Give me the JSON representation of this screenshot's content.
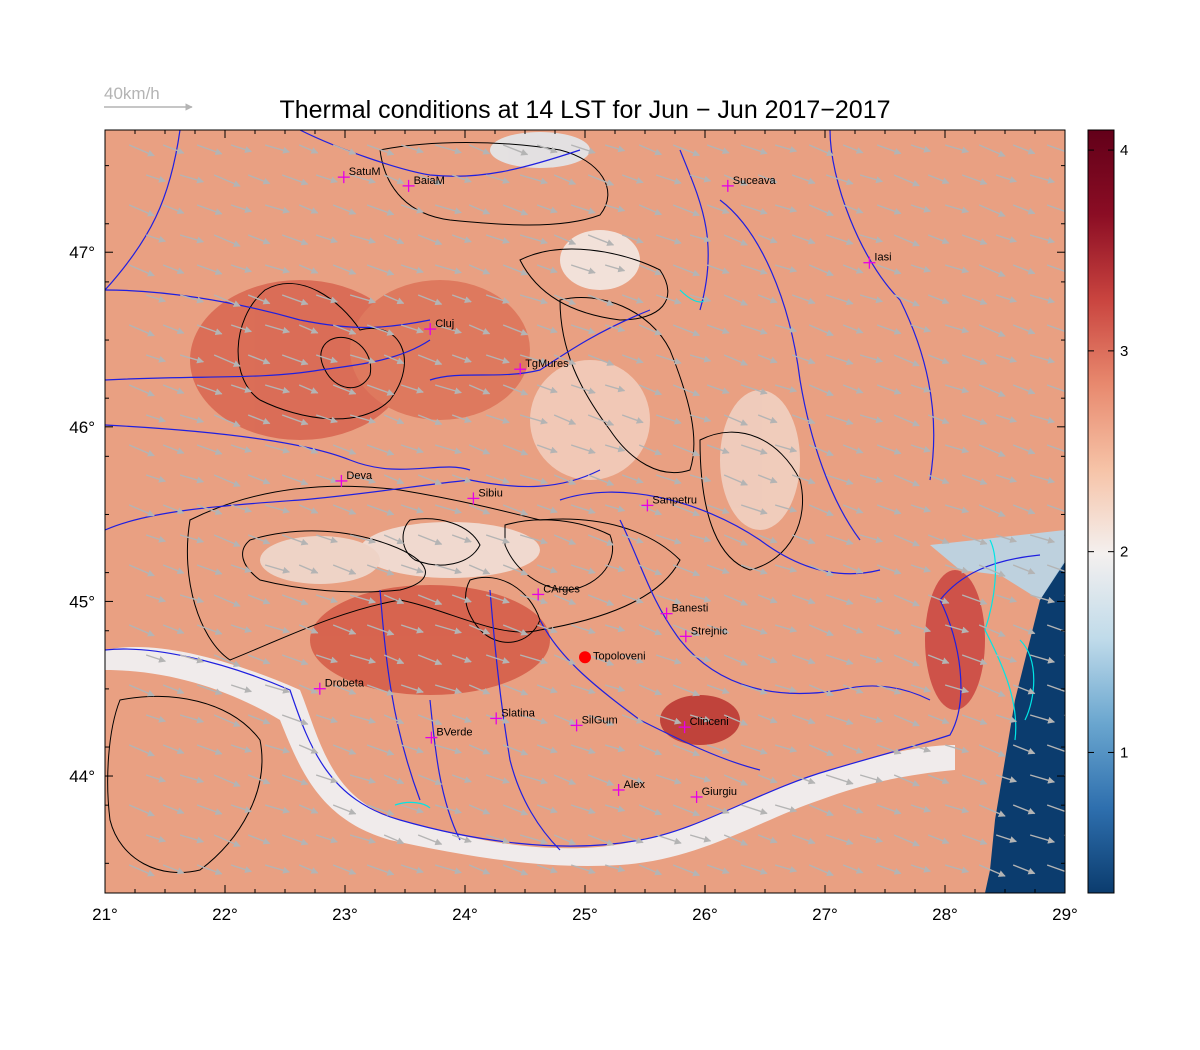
{
  "title": "Thermal conditions at 14 LST for Jun − Jun  2017−2017",
  "wind_scale": {
    "label": "40km/h",
    "color": "#b4b4b4"
  },
  "map": {
    "lon_range": [
      21,
      29
    ],
    "lat_range": [
      43.33,
      47.7
    ],
    "x_ticks": [
      {
        "value": 21,
        "label": "21°"
      },
      {
        "value": 22,
        "label": "22°"
      },
      {
        "value": 23,
        "label": "23°"
      },
      {
        "value": 24,
        "label": "24°"
      },
      {
        "value": 25,
        "label": "25°"
      },
      {
        "value": 26,
        "label": "26°"
      },
      {
        "value": 27,
        "label": "27°"
      },
      {
        "value": 28,
        "label": "28°"
      },
      {
        "value": 29,
        "label": "29°"
      }
    ],
    "y_ticks": [
      {
        "value": 44,
        "label": "44°"
      },
      {
        "value": 45,
        "label": "45°"
      },
      {
        "value": 46,
        "label": "46°"
      },
      {
        "value": 47,
        "label": "47°"
      }
    ]
  },
  "colorbar": {
    "range": [
      0.3,
      4.1
    ],
    "ticks": [
      {
        "value": 1,
        "label": "1"
      },
      {
        "value": 2,
        "label": "2"
      },
      {
        "value": 3,
        "label": "3"
      },
      {
        "value": 4,
        "label": "4"
      }
    ],
    "colors": [
      "#0b3c6e",
      "#2e6fae",
      "#6aa6cf",
      "#c0dbea",
      "#f4f0ef",
      "#f6c3a7",
      "#e8896e",
      "#c9443f",
      "#8b0d24",
      "#620019"
    ]
  },
  "cities": [
    {
      "name": "SatuM",
      "lon": 22.99,
      "lat": 47.43
    },
    {
      "name": "BaiaM",
      "lon": 23.53,
      "lat": 47.38
    },
    {
      "name": "Suceava",
      "lon": 26.19,
      "lat": 47.38
    },
    {
      "name": "Iasi",
      "lon": 27.37,
      "lat": 46.94
    },
    {
      "name": "Cluj",
      "lon": 23.71,
      "lat": 46.56
    },
    {
      "name": "TgMures",
      "lon": 24.46,
      "lat": 46.33
    },
    {
      "name": "Deva",
      "lon": 22.97,
      "lat": 45.69
    },
    {
      "name": "Sibiu",
      "lon": 24.07,
      "lat": 45.59
    },
    {
      "name": "Sanpetru",
      "lon": 25.52,
      "lat": 45.55
    },
    {
      "name": "CArges",
      "lon": 24.61,
      "lat": 45.04
    },
    {
      "name": "Banesti",
      "lon": 25.68,
      "lat": 44.93
    },
    {
      "name": "Strejnic",
      "lon": 25.84,
      "lat": 44.8
    },
    {
      "name": "Drobeta",
      "lon": 22.79,
      "lat": 44.5
    },
    {
      "name": "Slatina",
      "lon": 24.26,
      "lat": 44.33
    },
    {
      "name": "SilGum",
      "lon": 24.93,
      "lat": 44.29
    },
    {
      "name": "Clinceni",
      "lon": 25.83,
      "lat": 44.28
    },
    {
      "name": "BVerde",
      "lon": 23.72,
      "lat": 44.22
    },
    {
      "name": "Alex",
      "lon": 25.28,
      "lat": 43.92
    },
    {
      "name": "Giurgiu",
      "lon": 25.93,
      "lat": 43.88
    }
  ],
  "stations": [
    {
      "name": "Topoloveni",
      "lon": 25.0,
      "lat": 44.68,
      "color": "#ff0000"
    }
  ],
  "colors": {
    "city_marker": "#e600e6",
    "rivers": "#1f1fe0",
    "contours": "#000000",
    "coast_contour": "#00e5e5",
    "wind_arrows": "#b4b4b4",
    "sea": "#0b3c6e"
  }
}
